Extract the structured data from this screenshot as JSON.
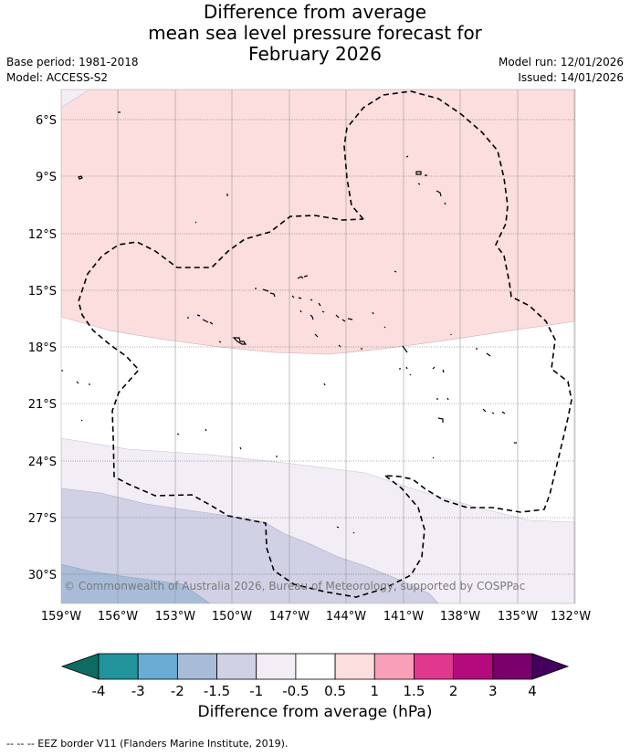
{
  "title": {
    "line1": "Difference from average",
    "line2": "mean sea level pressure forecast for",
    "line3": "February 2026"
  },
  "meta_left": {
    "base_period": "Base period: 1981-2018",
    "model": "Model: ACCESS-S2"
  },
  "meta_right": {
    "model_run": "Model run: 12/01/2026",
    "issued": "Issued: 14/01/2026"
  },
  "map": {
    "copyright": "© Commonwealth of Australia 2026, Bureau of Meteorology, supported by COSPPac",
    "lat_labels": [
      "6°S",
      "9°S",
      "12°S",
      "15°S",
      "18°S",
      "21°S",
      "24°S",
      "27°S",
      "30°S"
    ],
    "lon_labels": [
      "159°W",
      "156°W",
      "153°W",
      "150°W",
      "147°W",
      "144°W",
      "141°W",
      "138°W",
      "135°W",
      "132°W"
    ],
    "extent": {
      "lon_min": -159,
      "lon_max": -132,
      "lat_min": -31.5,
      "lat_max": -4.5
    },
    "anomaly_bands_hPa": [
      {
        "range": "0.5 to 1",
        "color": "#fcdede",
        "region": "north"
      },
      {
        "range": "-0.5 to 0.5",
        "color": "#ffffff",
        "region": "central"
      },
      {
        "range": "-1 to -0.5",
        "color": "#f3edf5",
        "region": "south"
      },
      {
        "range": "-1.5 to -1",
        "color": "#d0d1e4",
        "region": "southwest"
      },
      {
        "range": "-2 to -1.5",
        "color": "#a8bcd8",
        "region": "far southwest"
      }
    ]
  },
  "colorbar": {
    "title": "Difference from average (hPa)",
    "tick_labels": [
      "-4",
      "-3",
      "-2",
      "-1.5",
      "-1",
      "-0.5",
      "0.5",
      "1",
      "1.5",
      "2",
      "3",
      "4"
    ],
    "colors": [
      "#0c6b63",
      "#21939b",
      "#6aacd4",
      "#a8bcd8",
      "#d0d1e4",
      "#f3edf5",
      "#ffffff",
      "#fcdede",
      "#f8a0b8",
      "#e0388e",
      "#b50a7e",
      "#79006d",
      "#43005e"
    ]
  },
  "footer": "--  --  -- EEZ border V11 (Flanders Marine Institute, 2019)."
}
